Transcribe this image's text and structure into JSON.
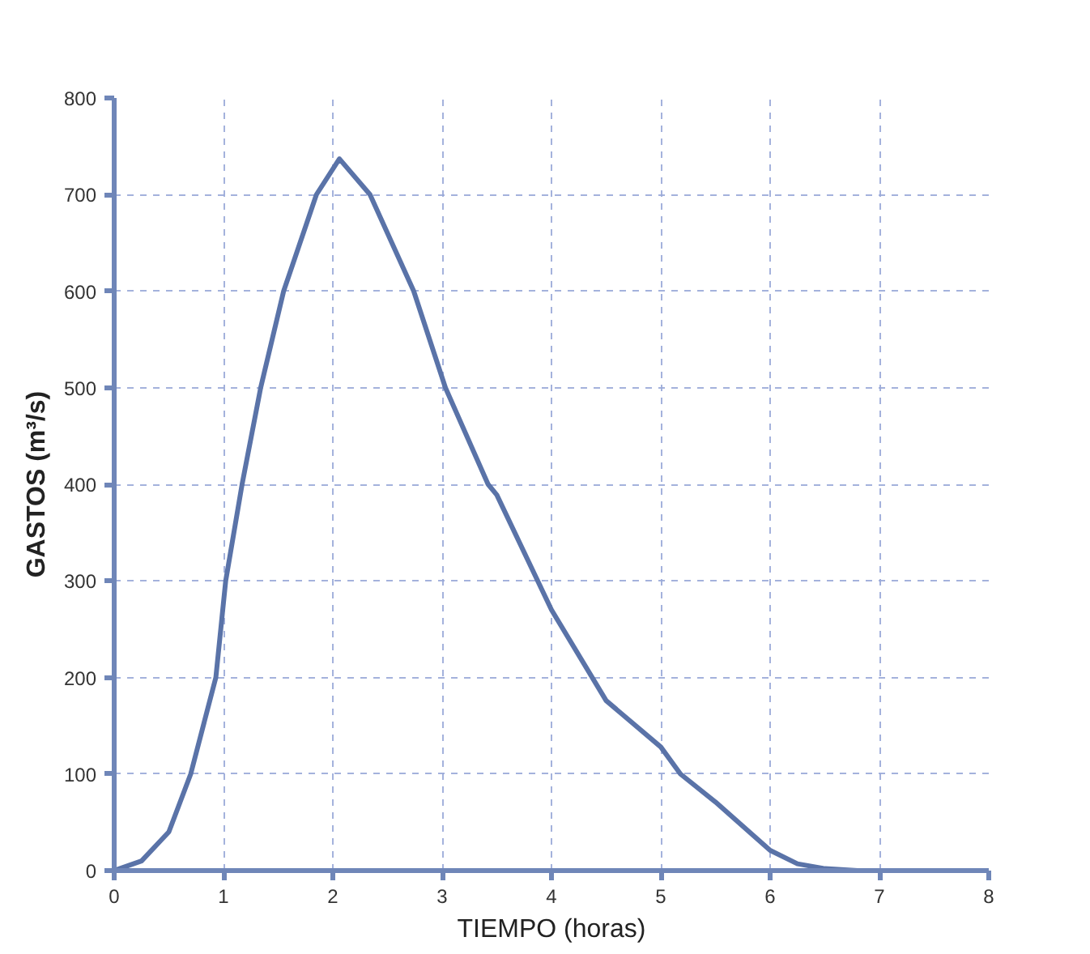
{
  "chart_data": {
    "type": "line",
    "xlabel": "TIEMPO (horas)",
    "ylabel": "GASTOS (m³/s)",
    "x": [
      0,
      0.25,
      0.5,
      0.7,
      0.93,
      1.02,
      1.17,
      1.34,
      1.55,
      1.85,
      2.06,
      2.34,
      2.74,
      3.03,
      3.42,
      3.5,
      4,
      4.5,
      5,
      5.18,
      5.5,
      6,
      6.25,
      6.5,
      6.8
    ],
    "series": [
      {
        "color": "#5a73a8",
        "values": [
          0,
          10,
          40,
          100,
          200,
          300,
          400,
          500,
          600,
          700,
          737,
          700,
          600,
          500,
          400,
          389,
          270,
          176,
          128,
          100,
          71,
          21,
          7,
          2,
          0
        ]
      }
    ],
    "xlim": [
      0,
      8
    ],
    "ylim": [
      0,
      800
    ],
    "xticks": [
      0,
      1,
      2,
      3,
      4,
      5,
      6,
      7,
      8
    ],
    "yticks": [
      0,
      100,
      200,
      300,
      400,
      500,
      600,
      700,
      800
    ],
    "grid": true,
    "marker": "none",
    "line_style": "solid"
  }
}
